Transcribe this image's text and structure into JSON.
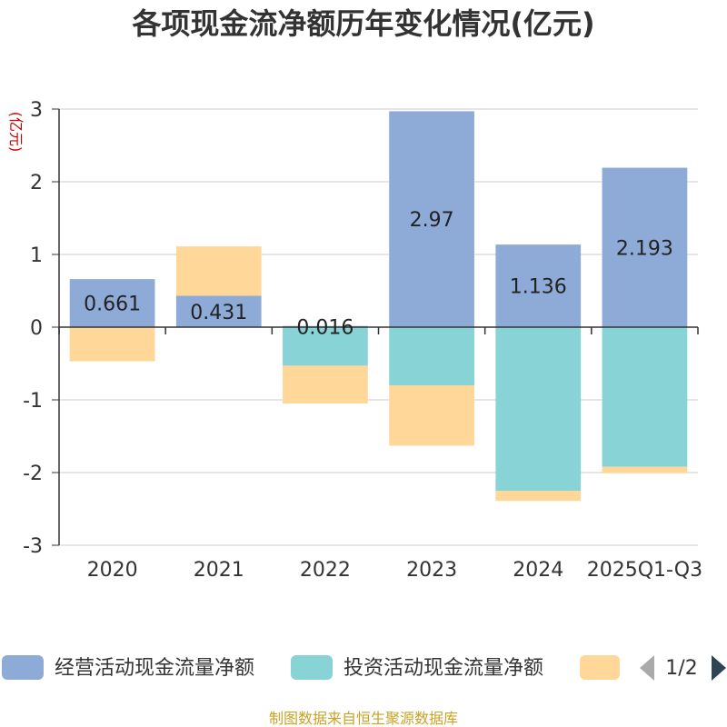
{
  "chart_data": {
    "type": "bar",
    "stacked": true,
    "title": "各项现金流净额历年变化情况(亿元)",
    "ylabel": "(亿元)",
    "ylim": [
      -3,
      3
    ],
    "yticks": [
      3,
      2,
      1,
      0,
      -1,
      -2,
      -3
    ],
    "categories": [
      "2020",
      "2021",
      "2022",
      "2023",
      "2024",
      "2025Q1-Q3"
    ],
    "series": [
      {
        "name": "经营活动现金流量净额",
        "color": "#8eabd8",
        "values": [
          0.661,
          0.431,
          0.016,
          2.97,
          1.136,
          2.193
        ],
        "labels": [
          "0.661",
          "0.431",
          "0.016",
          "2.97",
          "1.136",
          "2.193"
        ]
      },
      {
        "name": "投资活动现金流量净额",
        "color": "#87d3d5",
        "values": [
          0,
          0,
          -0.53,
          -0.8,
          -2.25,
          -1.92
        ],
        "labels": []
      },
      {
        "name": "",
        "color": "#fed799",
        "values": [
          -0.47,
          0.68,
          -0.52,
          -0.83,
          -0.14,
          -0.09
        ],
        "labels": []
      }
    ]
  },
  "legend": {
    "page": "1/2",
    "prev_icon": "triangle-left-icon",
    "next_icon": "triangle-right-icon"
  },
  "source": "制图数据来自恒生聚源数据库"
}
